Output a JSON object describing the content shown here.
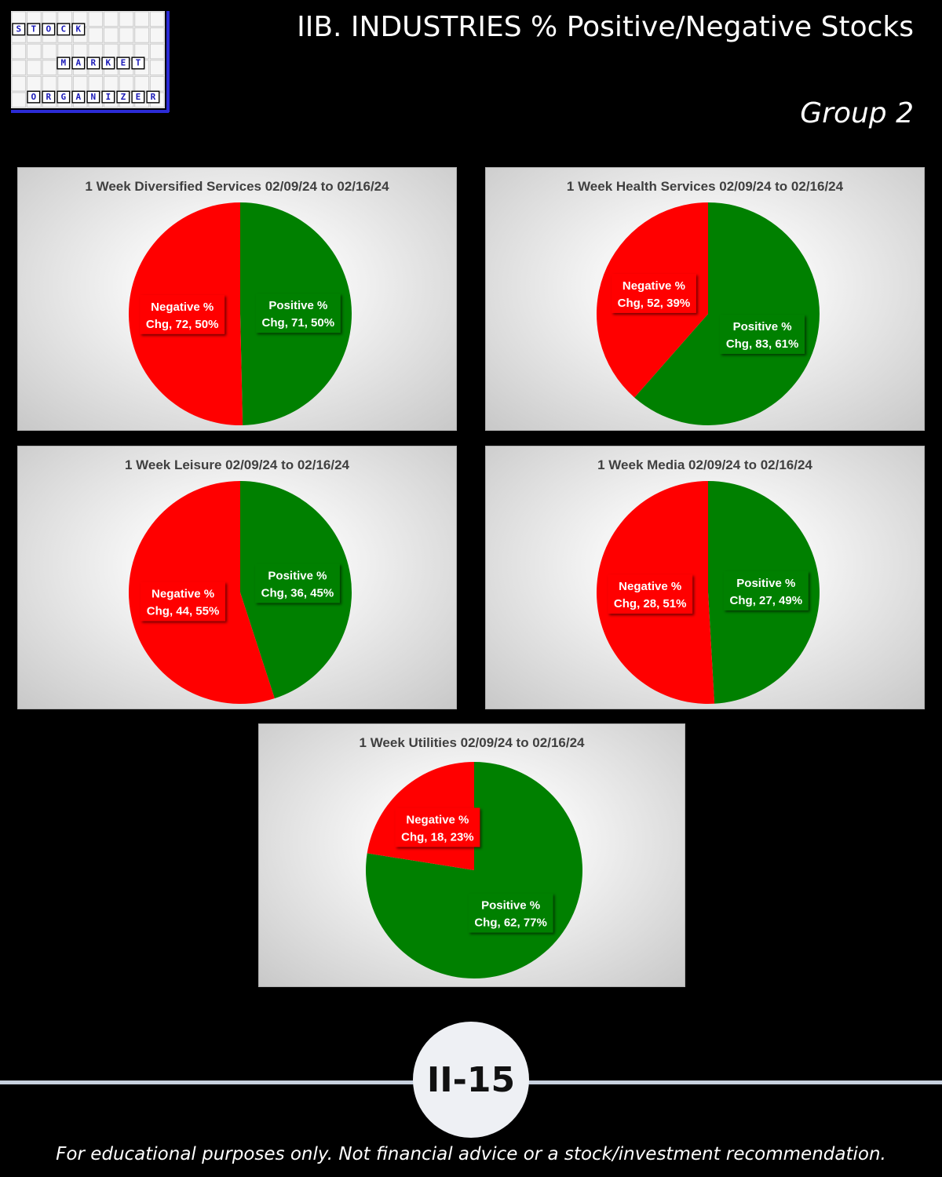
{
  "header": {
    "title": "IIB. INDUSTRIES % Positive/Negative Stocks",
    "group": "Group 2"
  },
  "logo": {
    "rows": [
      [
        "S",
        "T",
        "O",
        "C",
        "K"
      ],
      [
        "M",
        "A",
        "R",
        "K",
        "E",
        "T"
      ],
      [
        "O",
        "R",
        "G",
        "A",
        "N",
        "I",
        "Z",
        "E",
        "R"
      ]
    ]
  },
  "colors": {
    "positive": "#008000",
    "negative": "#ff0000"
  },
  "chart_data": [
    {
      "type": "pie",
      "title": "1 Week Diversified Services 02/09/24 to 02/16/24",
      "slices": [
        {
          "name": "Positive % Chg",
          "value": 71,
          "pct": "50%",
          "label_line1": "Positive %",
          "label_line2": "Chg, 71, 50%"
        },
        {
          "name": "Negative % Chg",
          "value": 72,
          "pct": "50%",
          "label_line1": "Negative %",
          "label_line2": "Chg, 72, 50%"
        }
      ]
    },
    {
      "type": "pie",
      "title": "1 Week Health Services 02/09/24 to 02/16/24",
      "slices": [
        {
          "name": "Positive % Chg",
          "value": 83,
          "pct": "61%",
          "label_line1": "Positive %",
          "label_line2": "Chg, 83, 61%"
        },
        {
          "name": "Negative % Chg",
          "value": 52,
          "pct": "39%",
          "label_line1": "Negative %",
          "label_line2": "Chg, 52, 39%"
        }
      ]
    },
    {
      "type": "pie",
      "title": "1 Week Leisure 02/09/24 to 02/16/24",
      "slices": [
        {
          "name": "Positive % Chg",
          "value": 36,
          "pct": "45%",
          "label_line1": "Positive %",
          "label_line2": "Chg, 36, 45%"
        },
        {
          "name": "Negative % Chg",
          "value": 44,
          "pct": "55%",
          "label_line1": "Negative %",
          "label_line2": "Chg, 44, 55%"
        }
      ]
    },
    {
      "type": "pie",
      "title": "1 Week Media 02/09/24 to 02/16/24",
      "slices": [
        {
          "name": "Positive % Chg",
          "value": 27,
          "pct": "49%",
          "label_line1": "Positive %",
          "label_line2": "Chg, 27, 49%"
        },
        {
          "name": "Negative % Chg",
          "value": 28,
          "pct": "51%",
          "label_line1": "Negative %",
          "label_line2": "Chg, 28, 51%"
        }
      ]
    },
    {
      "type": "pie",
      "title": "1 Week Utilities 02/09/24 to 02/16/24",
      "slices": [
        {
          "name": "Positive % Chg",
          "value": 62,
          "pct": "77%",
          "label_line1": "Positive %",
          "label_line2": "Chg, 62, 77%"
        },
        {
          "name": "Negative % Chg",
          "value": 18,
          "pct": "23%",
          "label_line1": "Negative %",
          "label_line2": "Chg, 18, 23%"
        }
      ]
    }
  ],
  "page_number": "II-15",
  "footer": "For educational purposes only. Not financial advice or a stock/investment recommendation."
}
